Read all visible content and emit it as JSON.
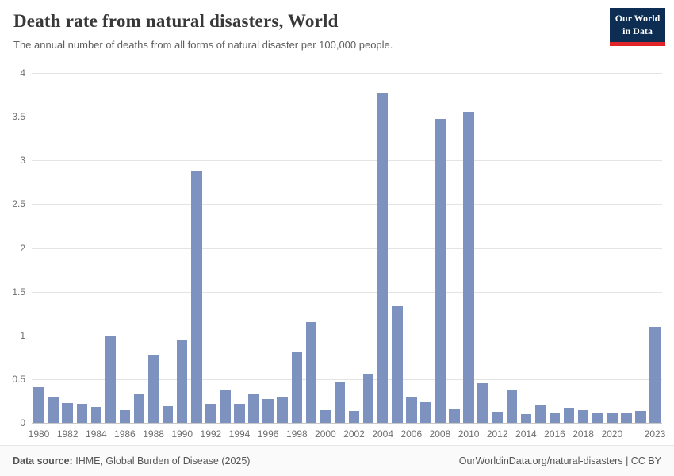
{
  "header": {
    "logo": {
      "line1": "Our World",
      "line2": "in Data",
      "bg_color": "#0d2e52",
      "accent_color": "#e02428"
    }
  },
  "chart_data": {
    "type": "bar",
    "title": "Death rate from natural disasters, World",
    "subtitle": "The annual number of deaths from all forms of natural disaster per 100,000 people.",
    "xlabel": "",
    "ylabel": "",
    "ylim": [
      0,
      4
    ],
    "grid": true,
    "legend": false,
    "bar_color": "#7d92be",
    "categories": [
      "1980",
      "1981",
      "1982",
      "1983",
      "1984",
      "1985",
      "1986",
      "1987",
      "1988",
      "1989",
      "1990",
      "1991",
      "1992",
      "1993",
      "1994",
      "1995",
      "1996",
      "1997",
      "1998",
      "1999",
      "2000",
      "2001",
      "2002",
      "2003",
      "2004",
      "2005",
      "2006",
      "2007",
      "2008",
      "2009",
      "2010",
      "2011",
      "2012",
      "2013",
      "2014",
      "2015",
      "2016",
      "2017",
      "2018",
      "2019",
      "2020",
      "2021",
      "2022",
      "2023"
    ],
    "values": [
      0.41,
      0.3,
      0.23,
      0.22,
      0.18,
      1.0,
      0.15,
      0.33,
      0.78,
      0.19,
      0.94,
      2.88,
      0.22,
      0.38,
      0.22,
      0.33,
      0.27,
      0.3,
      0.81,
      1.15,
      0.15,
      0.47,
      0.14,
      0.55,
      3.77,
      1.33,
      0.3,
      0.24,
      3.47,
      0.16,
      3.56,
      0.45,
      0.13,
      0.37,
      0.1,
      0.21,
      0.12,
      0.17,
      0.15,
      0.12,
      0.11,
      0.12,
      0.14,
      1.1
    ],
    "yticks": [
      0,
      0.5,
      1,
      1.5,
      2,
      2.5,
      3,
      3.5,
      4
    ],
    "ytick_labels": [
      "0",
      "0.5",
      "1",
      "1.5",
      "2",
      "2.5",
      "3",
      "3.5",
      "4"
    ],
    "xtick_labels": [
      "1980",
      "1982",
      "1984",
      "1986",
      "1988",
      "1990",
      "1992",
      "1994",
      "1996",
      "1998",
      "2000",
      "2002",
      "2004",
      "2006",
      "2008",
      "2010",
      "2012",
      "2014",
      "2016",
      "2018",
      "2020",
      "2023"
    ]
  },
  "footer": {
    "source_label": "Data source:",
    "source_text": "IHME, Global Burden of Disease (2025)",
    "credit": "OurWorldinData.org/natural-disasters | CC BY"
  }
}
